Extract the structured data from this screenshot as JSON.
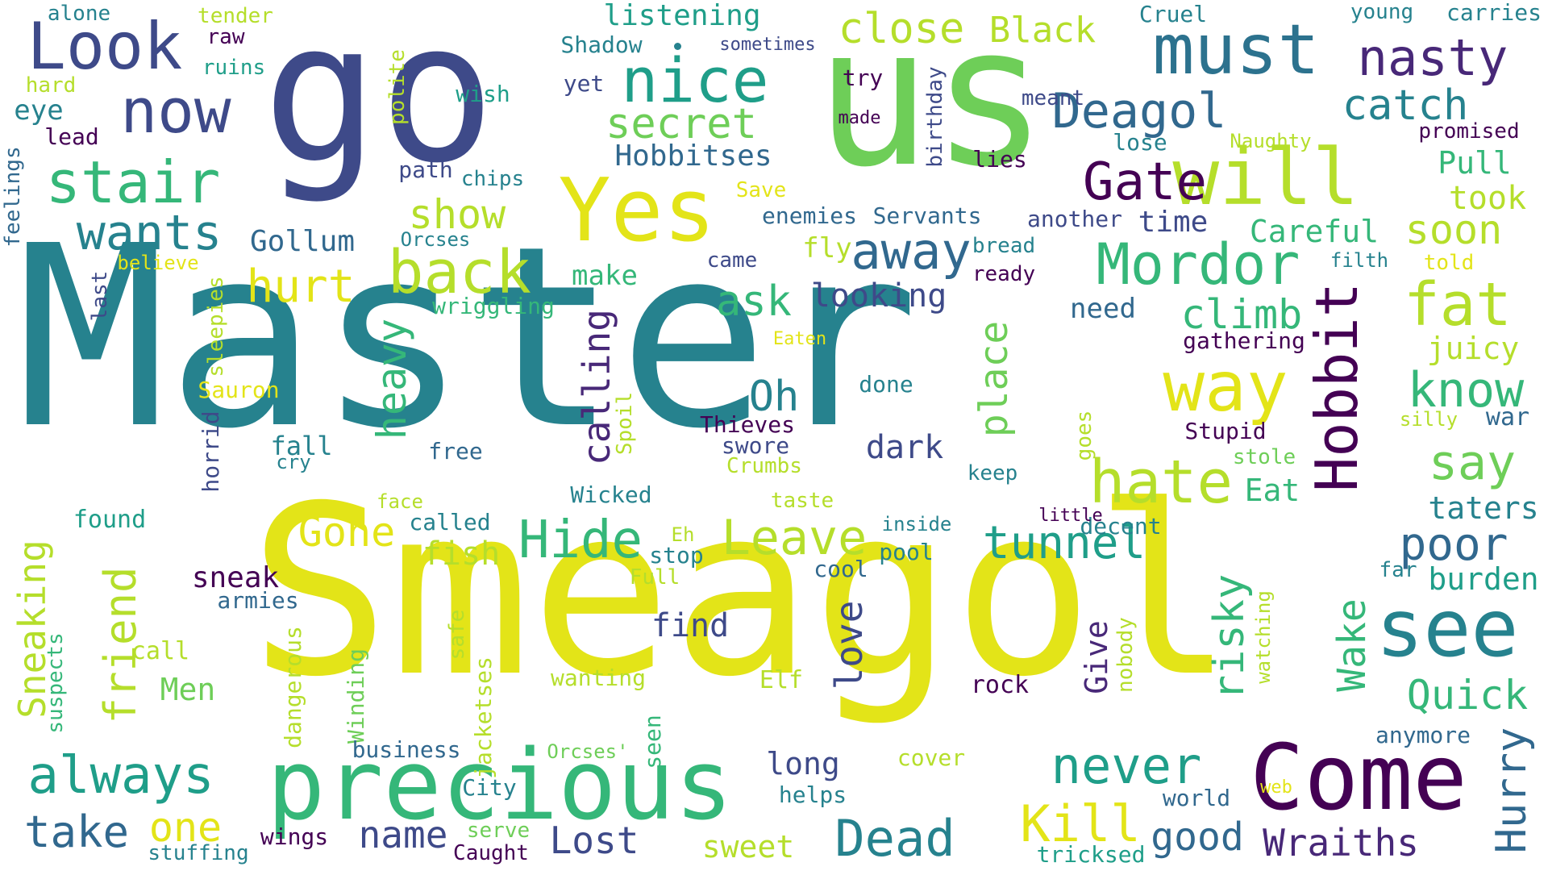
{
  "palette": {
    "viridis-indigo": "#3e4a89",
    "viridis-teal": "#26828e",
    "viridis-green": "#35b779",
    "viridis-lime": "#6ece58",
    "viridis-yellow": "#e3e418",
    "viridis-purple": "#440154",
    "viridis-cyan": "#1f9e89"
  },
  "words": [
    {
      "text": "Master",
      "color": "#26828e"
    },
    {
      "text": "Smeagol",
      "color": "#e3e418"
    },
    {
      "text": "go",
      "color": "#3e4a89"
    },
    {
      "text": "us",
      "color": "#6ece58"
    },
    {
      "text": "precious",
      "color": "#35b779"
    },
    {
      "text": "Come",
      "color": "#440154"
    },
    {
      "text": "Look",
      "color": "#3e4a89"
    },
    {
      "text": "must",
      "color": "#2c728e"
    },
    {
      "text": "nice",
      "color": "#1f9e89"
    },
    {
      "text": "now",
      "color": "#3e4a89"
    },
    {
      "text": "Yes",
      "color": "#e3e418"
    },
    {
      "text": "will",
      "color": "#b5de2b"
    },
    {
      "text": "stair",
      "color": "#35b779"
    },
    {
      "text": "way",
      "color": "#e3e418"
    },
    {
      "text": "see",
      "color": "#26828e"
    },
    {
      "text": "nasty",
      "color": "#482878"
    },
    {
      "text": "wants",
      "color": "#26828e"
    },
    {
      "text": "back",
      "color": "#b5de2b"
    },
    {
      "text": "away",
      "color": "#31688e"
    },
    {
      "text": "Mordor",
      "color": "#35b779"
    },
    {
      "text": "Hobbit",
      "color": "#440154"
    },
    {
      "text": "fat",
      "color": "#b5de2b"
    },
    {
      "text": "hate",
      "color": "#b5de2b"
    },
    {
      "text": "Deagol",
      "color": "#31688e"
    },
    {
      "text": "Gate",
      "color": "#440154"
    },
    {
      "text": "secret",
      "color": "#6ece58"
    },
    {
      "text": "close",
      "color": "#b5de2b"
    },
    {
      "text": "catch",
      "color": "#26828e"
    },
    {
      "text": "hurt",
      "color": "#e3e418"
    },
    {
      "text": "always",
      "color": "#1f9e89"
    },
    {
      "text": "Hide",
      "color": "#35b779"
    },
    {
      "text": "Leave",
      "color": "#b5de2b"
    },
    {
      "text": "tunnel",
      "color": "#1f9e89"
    },
    {
      "text": "never",
      "color": "#1f9e89"
    },
    {
      "text": "Dead",
      "color": "#26828e"
    },
    {
      "text": "Kill",
      "color": "#e3e418"
    },
    {
      "text": "take",
      "color": "#31688e"
    },
    {
      "text": "one",
      "color": "#e3e418"
    },
    {
      "text": "know",
      "color": "#35b779"
    },
    {
      "text": "say",
      "color": "#6ece58"
    },
    {
      "text": "poor",
      "color": "#31688e"
    },
    {
      "text": "Quick",
      "color": "#35b779"
    },
    {
      "text": "Hurry",
      "color": "#31688e"
    },
    {
      "text": "Wraiths",
      "color": "#482878"
    },
    {
      "text": "Lost",
      "color": "#3e4a89"
    },
    {
      "text": "good",
      "color": "#31688e"
    },
    {
      "text": "name",
      "color": "#3e4a89"
    },
    {
      "text": "friend",
      "color": "#b5de2b"
    },
    {
      "text": "Sneaking",
      "color": "#b5de2b"
    },
    {
      "text": "heavy",
      "color": "#35b779"
    },
    {
      "text": "calling",
      "color": "#482878"
    },
    {
      "text": "place",
      "color": "#6ece58"
    },
    {
      "text": "risky",
      "color": "#35b779"
    },
    {
      "text": "love",
      "color": "#3e4a89"
    },
    {
      "text": "Wake",
      "color": "#35b779"
    },
    {
      "text": "Give",
      "color": "#482878"
    },
    {
      "text": "Oh",
      "color": "#26828e"
    },
    {
      "text": "dark",
      "color": "#3e4a89"
    },
    {
      "text": "climb",
      "color": "#35b779"
    },
    {
      "text": "soon",
      "color": "#b5de2b"
    },
    {
      "text": "show",
      "color": "#b5de2b"
    },
    {
      "text": "ask",
      "color": "#35b779"
    },
    {
      "text": "looking",
      "color": "#3e4a89"
    },
    {
      "text": "Gone",
      "color": "#e3e418"
    },
    {
      "text": "fish",
      "color": "#b5de2b"
    },
    {
      "text": "find",
      "color": "#3e4a89"
    },
    {
      "text": "sneak",
      "color": "#440154"
    },
    {
      "text": "Men",
      "color": "#6ece58"
    },
    {
      "text": "sweet",
      "color": "#b5de2b"
    },
    {
      "text": "long",
      "color": "#3e4a89"
    },
    {
      "text": "Eat",
      "color": "#35b779"
    },
    {
      "text": "taters",
      "color": "#26828e"
    },
    {
      "text": "burden",
      "color": "#1f9e89"
    },
    {
      "text": "juicy",
      "color": "#b5de2b"
    },
    {
      "text": "took",
      "color": "#b5de2b"
    },
    {
      "text": "Pull",
      "color": "#35b779"
    },
    {
      "text": "Careful",
      "color": "#35b779"
    },
    {
      "text": "time",
      "color": "#3e4a89"
    },
    {
      "text": "Gollum",
      "color": "#31688e"
    },
    {
      "text": "listening",
      "color": "#1f9e89"
    },
    {
      "text": "Black",
      "color": "#b5de2b"
    },
    {
      "text": "Hobbitses",
      "color": "#31688e"
    },
    {
      "text": "make",
      "color": "#35b779"
    },
    {
      "text": "fly",
      "color": "#b5de2b"
    },
    {
      "text": "need",
      "color": "#31688e"
    },
    {
      "text": "war",
      "color": "#31688e"
    },
    {
      "text": "alone",
      "color": "#26828e"
    },
    {
      "text": "tender",
      "color": "#b5de2b"
    },
    {
      "text": "raw",
      "color": "#440154"
    },
    {
      "text": "ruins",
      "color": "#1f9e89"
    },
    {
      "text": "hard",
      "color": "#b5de2b"
    },
    {
      "text": "eye",
      "color": "#26828e"
    },
    {
      "text": "lead",
      "color": "#440154"
    },
    {
      "text": "feelings",
      "color": "#31688e"
    },
    {
      "text": "believe",
      "color": "#e3e418"
    },
    {
      "text": "last",
      "color": "#3e4a89"
    },
    {
      "text": "sleepies",
      "color": "#b5de2b"
    },
    {
      "text": "Sauron",
      "color": "#e3e418"
    },
    {
      "text": "horrid",
      "color": "#3e4a89"
    },
    {
      "text": "found",
      "color": "#1f9e89"
    },
    {
      "text": "suspects",
      "color": "#35b779"
    },
    {
      "text": "call",
      "color": "#b5de2b"
    },
    {
      "text": "dangerous",
      "color": "#b5de2b"
    },
    {
      "text": "fall",
      "color": "#26828e"
    },
    {
      "text": "cry",
      "color": "#26828e"
    },
    {
      "text": "free",
      "color": "#31688e"
    },
    {
      "text": "face",
      "color": "#b5de2b"
    },
    {
      "text": "called",
      "color": "#26828e"
    },
    {
      "text": "armies",
      "color": "#31688e"
    },
    {
      "text": "Winding",
      "color": "#6ece58"
    },
    {
      "text": "business",
      "color": "#31688e"
    },
    {
      "text": "stuffing",
      "color": "#26828e"
    },
    {
      "text": "wings",
      "color": "#440154"
    },
    {
      "text": "jacketses",
      "color": "#b5de2b"
    },
    {
      "text": "safe",
      "color": "#b5de2b"
    },
    {
      "text": "wanting",
      "color": "#b5de2b"
    },
    {
      "text": "Orcses'",
      "color": "#6ece58"
    },
    {
      "text": "seen",
      "color": "#35b779"
    },
    {
      "text": "City",
      "color": "#26828e"
    },
    {
      "text": "serve",
      "color": "#6ece58"
    },
    {
      "text": "Caught",
      "color": "#440154"
    },
    {
      "text": "helps",
      "color": "#26828e"
    },
    {
      "text": "cover",
      "color": "#b5de2b"
    },
    {
      "text": "tricksed",
      "color": "#1f9e89"
    },
    {
      "text": "world",
      "color": "#31688e"
    },
    {
      "text": "web",
      "color": "#e3e418"
    },
    {
      "text": "anymore",
      "color": "#31688e"
    },
    {
      "text": "watching",
      "color": "#b5de2b"
    },
    {
      "text": "nobody",
      "color": "#b5de2b"
    },
    {
      "text": "rock",
      "color": "#440154"
    },
    {
      "text": "Elf",
      "color": "#b5de2b"
    },
    {
      "text": "far",
      "color": "#26828e"
    },
    {
      "text": "cool",
      "color": "#31688e"
    },
    {
      "text": "pool",
      "color": "#26828e"
    },
    {
      "text": "decent",
      "color": "#26828e"
    },
    {
      "text": "little",
      "color": "#440154"
    },
    {
      "text": "inside",
      "color": "#26828e"
    },
    {
      "text": "Eh",
      "color": "#b5de2b"
    },
    {
      "text": "stop",
      "color": "#26828e"
    },
    {
      "text": "Full",
      "color": "#b5de2b"
    },
    {
      "text": "Wicked",
      "color": "#26828e"
    },
    {
      "text": "taste",
      "color": "#b5de2b"
    },
    {
      "text": "keep",
      "color": "#26828e"
    },
    {
      "text": "goes",
      "color": "#b5de2b"
    },
    {
      "text": "stole",
      "color": "#6ece58"
    },
    {
      "text": "silly",
      "color": "#b5de2b"
    },
    {
      "text": "Stupid",
      "color": "#440154"
    },
    {
      "text": "Thieves",
      "color": "#440154"
    },
    {
      "text": "swore",
      "color": "#3e4a89"
    },
    {
      "text": "Crumbs",
      "color": "#b5de2b"
    },
    {
      "text": "done",
      "color": "#26828e"
    },
    {
      "text": "Eaten",
      "color": "#e3e418"
    },
    {
      "text": "Spoil",
      "color": "#b5de2b"
    },
    {
      "text": "gathering",
      "color": "#440154"
    },
    {
      "text": "wriggling",
      "color": "#35b779"
    },
    {
      "text": "came",
      "color": "#3e4a89"
    },
    {
      "text": "Orcses",
      "color": "#26828e"
    },
    {
      "text": "ready",
      "color": "#440154"
    },
    {
      "text": "bread",
      "color": "#26828e"
    },
    {
      "text": "filth",
      "color": "#26828e"
    },
    {
      "text": "told",
      "color": "#e3e418"
    },
    {
      "text": "another",
      "color": "#3e4a89"
    },
    {
      "text": "Servants",
      "color": "#31688e"
    },
    {
      "text": "enemies",
      "color": "#31688e"
    },
    {
      "text": "Save",
      "color": "#e3e418"
    },
    {
      "text": "chips",
      "color": "#26828e"
    },
    {
      "text": "path",
      "color": "#3e4a89"
    },
    {
      "text": "polite",
      "color": "#b5de2b"
    },
    {
      "text": "wish",
      "color": "#1f9e89"
    },
    {
      "text": "lies",
      "color": "#440154"
    },
    {
      "text": "lose",
      "color": "#26828e"
    },
    {
      "text": "Naughty",
      "color": "#b5de2b"
    },
    {
      "text": "promised",
      "color": "#440154"
    },
    {
      "text": "birthday",
      "color": "#3e4a89"
    },
    {
      "text": "meant",
      "color": "#3e4a89"
    },
    {
      "text": "made",
      "color": "#440154"
    },
    {
      "text": "try",
      "color": "#440154"
    },
    {
      "text": "yet",
      "color": "#3e4a89"
    },
    {
      "text": "Shadow",
      "color": "#26828e"
    },
    {
      "text": "sometimes",
      "color": "#3e4a89"
    },
    {
      "text": "Cruel",
      "color": "#26828e"
    },
    {
      "text": "young",
      "color": "#26828e"
    },
    {
      "text": "carries",
      "color": "#26828e"
    }
  ]
}
